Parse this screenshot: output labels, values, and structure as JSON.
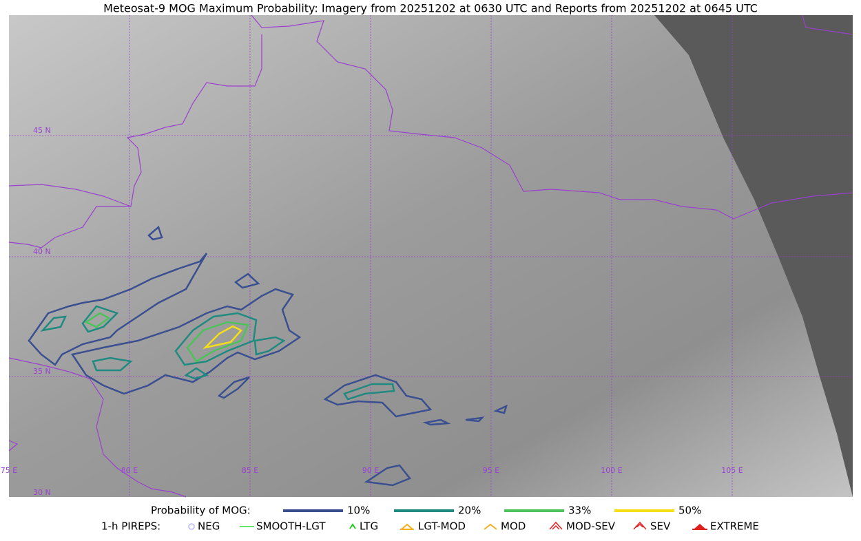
{
  "title": "Meteosat-9 MOG Maximum Probability: Imagery from 20251202 at 0630 UTC and Reports from 20251202 at 0645 UTC",
  "map": {
    "lon_labels": [
      "75 E",
      "80 E",
      "85 E",
      "90 E",
      "95 E",
      "100 E",
      "105 E"
    ],
    "lat_labels": [
      "45 N",
      "40 N",
      "35 N",
      "30 N"
    ]
  },
  "legend": {
    "probability": {
      "title": "Probability of MOG:",
      "items": [
        {
          "label": "10%",
          "color": "#3a4f8f"
        },
        {
          "label": "20%",
          "color": "#1f8a80"
        },
        {
          "label": "33%",
          "color": "#4cc25a"
        },
        {
          "label": "50%",
          "color": "#f5e015"
        }
      ]
    },
    "pireps": {
      "title": "1-h PIREPS:",
      "items": [
        {
          "label": "NEG",
          "color": "#b8b8f0"
        },
        {
          "label": "SMOOTH-LGT",
          "color": "#33dd33"
        },
        {
          "label": "LTG",
          "color": "#22cc22"
        },
        {
          "label": "LGT-MOD",
          "color": "#f0b020"
        },
        {
          "label": "MOD",
          "color": "#f0b020"
        },
        {
          "label": "MOD-SEV",
          "color": "#e02020"
        },
        {
          "label": "SEV",
          "color": "#e02020"
        },
        {
          "label": "EXTREME",
          "color": "#e02020"
        }
      ]
    }
  }
}
